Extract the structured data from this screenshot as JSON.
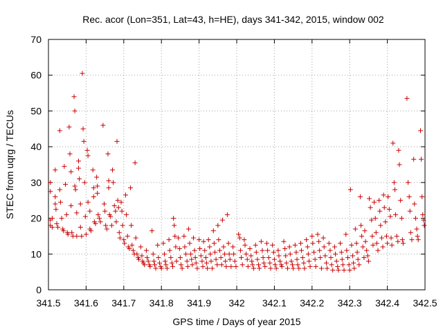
{
  "chart_data": {
    "type": "scatter",
    "title": "Rec. acor (Lon=351, Lat=43, h=HE), days 341-342, 2015, window 002",
    "xlabel": "GPS time / Days of year 2015",
    "ylabel": "STEC from uqrg / TECUs",
    "xlim": [
      341.5,
      342.5
    ],
    "ylim": [
      0,
      70
    ],
    "xticks": [
      341.5,
      341.6,
      341.7,
      341.8,
      341.9,
      342,
      342.1,
      342.2,
      342.3,
      342.4,
      342.5
    ],
    "xtick_labels": [
      "341.5",
      "341.6",
      "341.7",
      "341.8",
      "341.9",
      "342",
      "342.1",
      "342.2",
      "342.3",
      "342.4",
      "342.5"
    ],
    "yticks": [
      0,
      10,
      20,
      30,
      40,
      50,
      60,
      70
    ],
    "ytick_labels": [
      "0",
      "10",
      "20",
      "30",
      "40",
      "50",
      "60",
      "70"
    ],
    "grid": true,
    "marker": "+",
    "color": "#c80000",
    "points": [
      [
        341.505,
        30
      ],
      [
        341.505,
        27.5
      ],
      [
        341.505,
        19.5
      ],
      [
        341.505,
        18
      ],
      [
        341.51,
        20
      ],
      [
        341.51,
        17.5
      ],
      [
        341.518,
        33.5
      ],
      [
        341.518,
        26
      ],
      [
        341.518,
        24
      ],
      [
        341.52,
        22.5
      ],
      [
        341.522,
        18.5
      ],
      [
        341.525,
        17.5
      ],
      [
        341.53,
        44.5
      ],
      [
        341.53,
        28
      ],
      [
        341.532,
        24.5
      ],
      [
        341.535,
        20
      ],
      [
        341.538,
        17
      ],
      [
        341.54,
        16.5
      ],
      [
        341.542,
        34.5
      ],
      [
        341.545,
        29.5
      ],
      [
        341.548,
        21
      ],
      [
        341.55,
        16
      ],
      [
        341.552,
        15.5
      ],
      [
        341.555,
        45.5
      ],
      [
        341.557,
        38
      ],
      [
        341.56,
        33
      ],
      [
        341.56,
        23.5
      ],
      [
        341.562,
        16
      ],
      [
        341.565,
        15
      ],
      [
        341.568,
        54
      ],
      [
        341.57,
        50
      ],
      [
        341.57,
        29
      ],
      [
        341.572,
        28
      ],
      [
        341.575,
        21.5
      ],
      [
        341.575,
        15
      ],
      [
        341.58,
        36
      ],
      [
        341.58,
        34
      ],
      [
        341.582,
        31
      ],
      [
        341.585,
        24
      ],
      [
        341.585,
        17.5
      ],
      [
        341.588,
        15
      ],
      [
        341.59,
        60.5
      ],
      [
        341.592,
        45
      ],
      [
        341.594,
        41.5
      ],
      [
        341.596,
        30
      ],
      [
        341.598,
        20.5
      ],
      [
        341.6,
        15.5
      ],
      [
        341.603,
        39
      ],
      [
        341.605,
        37.5
      ],
      [
        341.605,
        24.5
      ],
      [
        341.61,
        22
      ],
      [
        341.61,
        17
      ],
      [
        341.613,
        16.5
      ],
      [
        341.618,
        33.5
      ],
      [
        341.62,
        28.5
      ],
      [
        341.62,
        26
      ],
      [
        341.622,
        19
      ],
      [
        341.625,
        18.5
      ],
      [
        341.628,
        31.5
      ],
      [
        341.63,
        29
      ],
      [
        341.63,
        27
      ],
      [
        341.632,
        21
      ],
      [
        341.635,
        20
      ],
      [
        341.638,
        19
      ],
      [
        341.645,
        46
      ],
      [
        341.648,
        24
      ],
      [
        341.65,
        22
      ],
      [
        341.652,
        18
      ],
      [
        341.655,
        17
      ],
      [
        341.658,
        38
      ],
      [
        341.66,
        30.5
      ],
      [
        341.66,
        28.5
      ],
      [
        341.662,
        21
      ],
      [
        341.665,
        20.5
      ],
      [
        341.668,
        18
      ],
      [
        341.67,
        33.5
      ],
      [
        341.672,
        30
      ],
      [
        341.675,
        23.5
      ],
      [
        341.678,
        22
      ],
      [
        341.68,
        19
      ],
      [
        341.682,
        41.5
      ],
      [
        341.684,
        25
      ],
      [
        341.686,
        23
      ],
      [
        341.688,
        16
      ],
      [
        341.69,
        14.5
      ],
      [
        341.693,
        24.5
      ],
      [
        341.695,
        22
      ],
      [
        341.697,
        18
      ],
      [
        341.7,
        14
      ],
      [
        341.702,
        13
      ],
      [
        341.705,
        26.5
      ],
      [
        341.707,
        21
      ],
      [
        341.71,
        15
      ],
      [
        341.712,
        12
      ],
      [
        341.715,
        11.5
      ],
      [
        341.718,
        28.5
      ],
      [
        341.72,
        18
      ],
      [
        341.722,
        12.5
      ],
      [
        341.725,
        11
      ],
      [
        341.728,
        10
      ],
      [
        341.73,
        35.5
      ],
      [
        341.732,
        14.5
      ],
      [
        341.735,
        10
      ],
      [
        341.738,
        9
      ],
      [
        341.74,
        8.5
      ],
      [
        341.745,
        12
      ],
      [
        341.748,
        9.5
      ],
      [
        341.75,
        8
      ],
      [
        341.752,
        7.5
      ],
      [
        341.755,
        7
      ],
      [
        341.76,
        11
      ],
      [
        341.762,
        9
      ],
      [
        341.765,
        8
      ],
      [
        341.768,
        7
      ],
      [
        341.77,
        6.5
      ],
      [
        341.775,
        16.5
      ],
      [
        341.778,
        10
      ],
      [
        341.78,
        8
      ],
      [
        341.782,
        7
      ],
      [
        341.785,
        6
      ],
      [
        341.79,
        12.5
      ],
      [
        341.792,
        9
      ],
      [
        341.795,
        7.5
      ],
      [
        341.798,
        6.5
      ],
      [
        341.8,
        6
      ],
      [
        341.805,
        13
      ],
      [
        341.808,
        10
      ],
      [
        341.81,
        8
      ],
      [
        341.812,
        7
      ],
      [
        341.815,
        6
      ],
      [
        341.82,
        14
      ],
      [
        341.822,
        11
      ],
      [
        341.825,
        9
      ],
      [
        341.828,
        7.5
      ],
      [
        341.83,
        6.5
      ],
      [
        341.832,
        20
      ],
      [
        341.834,
        18
      ],
      [
        341.836,
        15
      ],
      [
        341.838,
        12
      ],
      [
        341.84,
        8
      ],
      [
        341.845,
        14.5
      ],
      [
        341.848,
        11.5
      ],
      [
        341.85,
        9
      ],
      [
        341.852,
        7
      ],
      [
        341.855,
        6
      ],
      [
        341.86,
        15
      ],
      [
        341.862,
        12
      ],
      [
        341.865,
        10
      ],
      [
        341.868,
        8
      ],
      [
        341.87,
        6.5
      ],
      [
        341.872,
        17
      ],
      [
        341.875,
        13
      ],
      [
        341.878,
        10
      ],
      [
        341.88,
        8.5
      ],
      [
        341.882,
        7
      ],
      [
        341.885,
        14.5
      ],
      [
        341.888,
        11
      ],
      [
        341.89,
        9
      ],
      [
        341.892,
        7.5
      ],
      [
        341.895,
        6
      ],
      [
        341.9,
        14
      ],
      [
        341.902,
        11.5
      ],
      [
        341.905,
        9.5
      ],
      [
        341.908,
        8
      ],
      [
        341.91,
        6.5
      ],
      [
        341.912,
        13.5
      ],
      [
        341.915,
        11
      ],
      [
        341.918,
        9
      ],
      [
        341.92,
        7.5
      ],
      [
        341.922,
        6
      ],
      [
        341.925,
        14
      ],
      [
        341.928,
        12
      ],
      [
        341.93,
        10
      ],
      [
        341.932,
        8
      ],
      [
        341.935,
        6
      ],
      [
        341.938,
        16.5
      ],
      [
        341.94,
        13
      ],
      [
        341.942,
        10.5
      ],
      [
        341.945,
        8.5
      ],
      [
        341.948,
        7
      ],
      [
        341.95,
        18
      ],
      [
        341.952,
        14
      ],
      [
        341.955,
        11
      ],
      [
        341.958,
        9
      ],
      [
        341.96,
        7
      ],
      [
        341.962,
        19.5
      ],
      [
        341.965,
        12
      ],
      [
        341.968,
        10
      ],
      [
        341.97,
        8
      ],
      [
        341.972,
        6.5
      ],
      [
        341.975,
        21
      ],
      [
        341.978,
        13
      ],
      [
        341.98,
        10
      ],
      [
        341.982,
        8.5
      ],
      [
        341.985,
        6.5
      ],
      [
        341.99,
        12
      ],
      [
        341.992,
        10
      ],
      [
        341.995,
        8
      ],
      [
        341.998,
        6.5
      ],
      [
        342.005,
        15.5
      ],
      [
        342.008,
        14.5
      ],
      [
        342.01,
        11
      ],
      [
        342.012,
        9
      ],
      [
        342.015,
        7
      ],
      [
        342.02,
        14
      ],
      [
        342.022,
        12.5
      ],
      [
        342.025,
        10
      ],
      [
        342.028,
        8.5
      ],
      [
        342.03,
        6.5
      ],
      [
        342.035,
        11.5
      ],
      [
        342.038,
        9.5
      ],
      [
        342.04,
        8
      ],
      [
        342.042,
        7
      ],
      [
        342.045,
        6
      ],
      [
        342.05,
        12.5
      ],
      [
        342.052,
        10.5
      ],
      [
        342.055,
        8.5
      ],
      [
        342.058,
        7
      ],
      [
        342.06,
        6
      ],
      [
        342.065,
        13.5
      ],
      [
        342.068,
        11
      ],
      [
        342.07,
        9
      ],
      [
        342.072,
        7.5
      ],
      [
        342.075,
        6.5
      ],
      [
        342.08,
        13
      ],
      [
        342.082,
        11
      ],
      [
        342.085,
        9
      ],
      [
        342.088,
        7.5
      ],
      [
        342.09,
        6
      ],
      [
        342.095,
        12.5
      ],
      [
        342.098,
        10.5
      ],
      [
        342.1,
        8.5
      ],
      [
        342.102,
        7
      ],
      [
        342.105,
        6
      ],
      [
        342.11,
        11
      ],
      [
        342.112,
        9.5
      ],
      [
        342.115,
        8
      ],
      [
        342.118,
        7
      ],
      [
        342.12,
        6.5
      ],
      [
        342.125,
        13.5
      ],
      [
        342.128,
        11.5
      ],
      [
        342.13,
        9.5
      ],
      [
        342.132,
        7.5
      ],
      [
        342.135,
        6
      ],
      [
        342.14,
        12
      ],
      [
        342.142,
        10
      ],
      [
        342.145,
        8
      ],
      [
        342.148,
        7
      ],
      [
        342.15,
        6
      ],
      [
        342.155,
        12.5
      ],
      [
        342.158,
        10.5
      ],
      [
        342.16,
        8.5
      ],
      [
        342.162,
        7
      ],
      [
        342.165,
        6
      ],
      [
        342.17,
        13
      ],
      [
        342.172,
        11
      ],
      [
        342.175,
        9
      ],
      [
        342.178,
        7.5
      ],
      [
        342.18,
        6
      ],
      [
        342.185,
        14
      ],
      [
        342.188,
        12
      ],
      [
        342.19,
        10
      ],
      [
        342.192,
        8
      ],
      [
        342.195,
        6.5
      ],
      [
        342.2,
        15
      ],
      [
        342.202,
        13
      ],
      [
        342.205,
        10.5
      ],
      [
        342.208,
        8.5
      ],
      [
        342.21,
        6.5
      ],
      [
        342.215,
        15.5
      ],
      [
        342.218,
        13.5
      ],
      [
        342.22,
        11
      ],
      [
        342.222,
        9
      ],
      [
        342.225,
        6
      ],
      [
        342.23,
        14.5
      ],
      [
        342.232,
        12
      ],
      [
        342.235,
        9.5
      ],
      [
        342.238,
        7.5
      ],
      [
        342.24,
        6
      ],
      [
        342.245,
        13
      ],
      [
        342.248,
        11
      ],
      [
        342.25,
        9
      ],
      [
        342.252,
        7
      ],
      [
        342.255,
        5.5
      ],
      [
        342.26,
        12
      ],
      [
        342.262,
        10
      ],
      [
        342.265,
        8
      ],
      [
        342.268,
        6.5
      ],
      [
        342.27,
        5.5
      ],
      [
        342.275,
        13
      ],
      [
        342.278,
        10.5
      ],
      [
        342.28,
        8.5
      ],
      [
        342.282,
        7
      ],
      [
        342.285,
        5.5
      ],
      [
        342.29,
        15.5
      ],
      [
        342.292,
        11
      ],
      [
        342.295,
        9
      ],
      [
        342.298,
        7
      ],
      [
        342.3,
        5.5
      ],
      [
        342.302,
        28
      ],
      [
        342.305,
        12.5
      ],
      [
        342.308,
        9.5
      ],
      [
        342.31,
        7.5
      ],
      [
        342.312,
        6
      ],
      [
        342.315,
        17
      ],
      [
        342.318,
        13
      ],
      [
        342.32,
        10.5
      ],
      [
        342.322,
        8.5
      ],
      [
        342.325,
        7
      ],
      [
        342.328,
        26
      ],
      [
        342.33,
        18
      ],
      [
        342.332,
        15
      ],
      [
        342.335,
        12
      ],
      [
        342.338,
        9
      ],
      [
        342.34,
        16.5
      ],
      [
        342.342,
        13.5
      ],
      [
        342.345,
        11
      ],
      [
        342.348,
        9.5
      ],
      [
        342.35,
        8
      ],
      [
        342.352,
        25.5
      ],
      [
        342.355,
        23
      ],
      [
        342.358,
        19.5
      ],
      [
        342.36,
        15
      ],
      [
        342.362,
        12.5
      ],
      [
        342.365,
        24.5
      ],
      [
        342.368,
        20
      ],
      [
        342.37,
        16
      ],
      [
        342.372,
        13
      ],
      [
        342.375,
        11
      ],
      [
        342.378,
        25
      ],
      [
        342.38,
        22
      ],
      [
        342.382,
        18
      ],
      [
        342.385,
        14.5
      ],
      [
        342.388,
        12
      ],
      [
        342.39,
        26.5
      ],
      [
        342.392,
        23
      ],
      [
        342.395,
        19
      ],
      [
        342.398,
        15
      ],
      [
        342.4,
        13
      ],
      [
        342.402,
        26
      ],
      [
        342.405,
        22.5
      ],
      [
        342.408,
        20.5
      ],
      [
        342.41,
        14.5
      ],
      [
        342.412,
        12.5
      ],
      [
        342.415,
        41
      ],
      [
        342.418,
        30
      ],
      [
        342.42,
        28
      ],
      [
        342.422,
        21
      ],
      [
        342.425,
        15
      ],
      [
        342.428,
        13.5
      ],
      [
        342.43,
        39
      ],
      [
        342.432,
        35
      ],
      [
        342.435,
        25
      ],
      [
        342.438,
        20
      ],
      [
        342.44,
        14
      ],
      [
        342.442,
        13
      ],
      [
        342.452,
        53.5
      ],
      [
        342.455,
        30
      ],
      [
        342.458,
        26
      ],
      [
        342.46,
        22
      ],
      [
        342.462,
        16
      ],
      [
        342.465,
        14
      ],
      [
        342.47,
        36.5
      ],
      [
        342.472,
        24
      ],
      [
        342.475,
        20
      ],
      [
        342.478,
        17
      ],
      [
        342.48,
        15
      ],
      [
        342.482,
        14
      ],
      [
        342.488,
        44.5
      ],
      [
        342.49,
        36.5
      ],
      [
        342.492,
        26
      ],
      [
        342.494,
        21
      ],
      [
        342.496,
        19.5
      ],
      [
        342.498,
        18
      ]
    ]
  }
}
